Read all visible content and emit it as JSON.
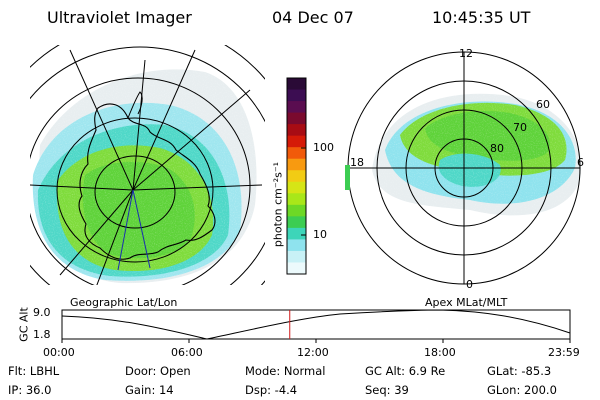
{
  "header": {
    "instrument": "Ultraviolet Imager",
    "date": "04 Dec 07",
    "time": "10:45:35 UT"
  },
  "geo_panel": {
    "title": "Geographic Lat/Lon"
  },
  "mag_panel": {
    "title": "Apex MLat/MLT",
    "mlt_labels": [
      "12",
      "18",
      "6",
      "0"
    ],
    "mlat_labels": [
      "60",
      "70",
      "80"
    ]
  },
  "colorbar": {
    "unit_label": "photon cm⁻²s⁻¹",
    "ticks": [
      "100",
      "10"
    ],
    "colors": [
      "#2a0a36",
      "#3c0d52",
      "#5a0d50",
      "#7a0a2e",
      "#a80c14",
      "#d51a08",
      "#f15a0a",
      "#f89a10",
      "#f2cc14",
      "#d6e516",
      "#a9e719",
      "#6dd826",
      "#3ccd52",
      "#3dd5b9",
      "#8fe3ee",
      "#c8f1f6",
      "#ecfafc"
    ]
  },
  "orbit_panel": {
    "ylabel": "GC Alt",
    "ytick_top": "9.0",
    "ytick_bottom": "1.8",
    "xticks": [
      "00:00",
      "06:00",
      "12:00",
      "18:00",
      "23:59"
    ],
    "current_time_marker_hours": 10.76
  },
  "status": {
    "flt": "Flt: LBHL",
    "ip": "IP: 36.0",
    "door": "Door: Open",
    "gain": "Gain: 14",
    "mode": "Mode: Normal",
    "dsp": "Dsp:   -4.4",
    "gc_alt": "GC Alt: 6.9 Re",
    "seq": "Seq: 39",
    "glat": "GLat: -85.3",
    "glon": "GLon: 200.0"
  }
}
